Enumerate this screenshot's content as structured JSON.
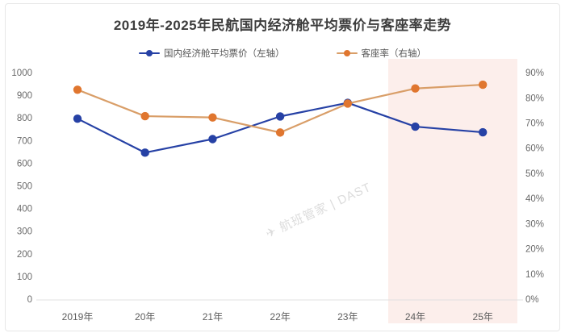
{
  "colors": {
    "title_text": "#3d3d3d",
    "axis_text": "#6a6a6a",
    "blue_series": "#2641a5",
    "orange_marker": "#e0762f",
    "orange_line": "#d99e68",
    "highlight_fill": "#fceeeb",
    "axis_line": "#e0e0e0",
    "watermark_text": "#dcdcdc",
    "frame_border": "#e7e7e7"
  },
  "watermark": "✈ 航班管家 | DAST",
  "chart_data": {
    "type": "line",
    "title": "2019年-2025年民航国内经济舱平均票价与客座率走势",
    "categories": [
      "2019年",
      "20年",
      "21年",
      "22年",
      "23年",
      "24年",
      "25年"
    ],
    "series": [
      {
        "name": "国内经济舱平均票价（左轴）",
        "axis": "left",
        "color": "#2641a5",
        "line_color": "#2641a5",
        "values": [
          800,
          650,
          710,
          810,
          870,
          765,
          740
        ]
      },
      {
        "name": "客座率（右轴）",
        "axis": "right",
        "color": "#e0762f",
        "line_color": "#d99e68",
        "values": [
          83.5,
          73,
          72.5,
          66.5,
          78,
          84,
          85.5
        ],
        "unit": "%"
      }
    ],
    "left_axis": {
      "range": [
        0,
        1000
      ],
      "ticks": [
        "1000",
        "900",
        "800",
        "700",
        "600",
        "500",
        "400",
        "300",
        "200",
        "100",
        "0"
      ]
    },
    "right_axis": {
      "range": [
        0,
        90
      ],
      "ticks": [
        "90%",
        "80%",
        "70%",
        "60%",
        "50%",
        "40%",
        "30%",
        "20%",
        "10%",
        "0%"
      ]
    },
    "grid": false,
    "legend_position": "top",
    "highlight_region": {
      "from_category": "24年",
      "to_category": "25年",
      "fill": "#fceeeb"
    }
  }
}
